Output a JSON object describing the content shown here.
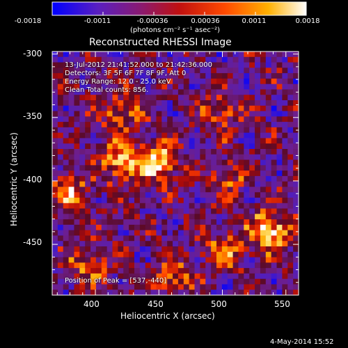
{
  "colorbar": {
    "tick_labels": [
      "-0.0018",
      "-0.0011",
      "-0.00036",
      "0.00036",
      "0.0011",
      "0.0018"
    ],
    "units": "(photons cm⁻² s⁻¹ asec⁻²)",
    "colors": [
      "#0000ff",
      "#6a1bb0",
      "#aa1030",
      "#ff3a00",
      "#ffb000",
      "#ffffff"
    ]
  },
  "chart_data": {
    "type": "heatmap",
    "title": "Reconstructed RHESSI Image",
    "xlabel": "Heliocentric X (arcsec)",
    "ylabel": "Heliocentric Y (arcsec)",
    "xlim": [
      366,
      560
    ],
    "ylim": [
      -490,
      -298
    ],
    "x_ticks": [
      "400",
      "450",
      "500",
      "550"
    ],
    "y_ticks": [
      "-300",
      "-350",
      "-400",
      "-450"
    ],
    "x_tick_values": [
      400,
      450,
      500,
      550
    ],
    "y_tick_values": [
      -300,
      -350,
      -400,
      -450
    ],
    "sources": [
      {
        "x": 537,
        "y": -440,
        "value": 1.0
      },
      {
        "x": 450,
        "y": -385,
        "value": 0.82
      },
      {
        "x": 420,
        "y": -385,
        "value": 0.78
      },
      {
        "x": 420,
        "y": -345,
        "value": 0.62
      },
      {
        "x": 380,
        "y": -410,
        "value": 0.62
      },
      {
        "x": 395,
        "y": -465,
        "value": 0.55
      },
      {
        "x": 500,
        "y": -455,
        "value": 0.55
      },
      {
        "x": 460,
        "y": -475,
        "value": 0.5
      },
      {
        "x": 500,
        "y": -345,
        "value": 0.48
      },
      {
        "x": 505,
        "y": -395,
        "value": 0.45
      }
    ],
    "annotations": [
      "13-Jul-2012 21:41:52.000 to 21:42:36.000",
      "Detectors: 3F 5F 6F 7F 8F 9F, Att 0",
      "Energy Range: 12.0 - 25.0 keV",
      "Clean    Total counts: 856."
    ],
    "peak_label": "Position of Peak = [537,-440]"
  },
  "footer": {
    "timestamp": "4-May-2014 15:52"
  }
}
